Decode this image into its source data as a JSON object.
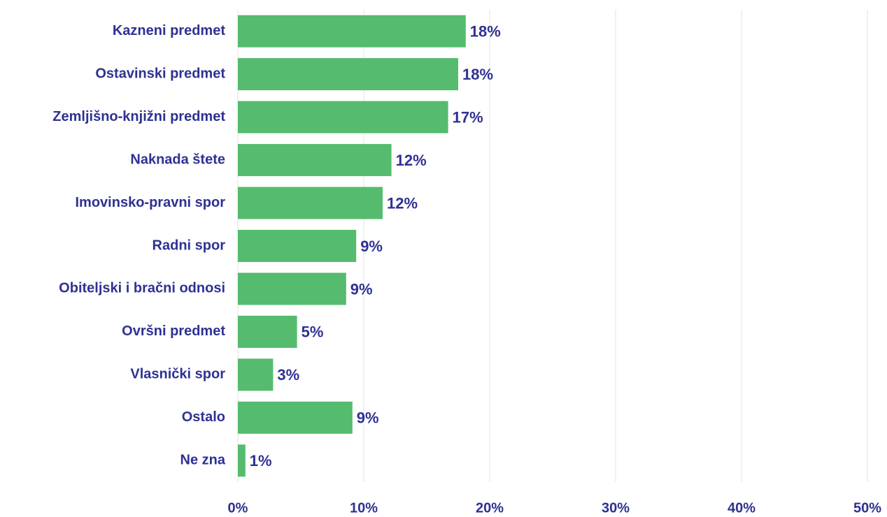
{
  "chart_data": {
    "type": "barh",
    "categories": [
      "Kazneni predmet",
      "Ostavinski predmet",
      "Zemljišno-knjižni predmet",
      "Naknada štete",
      "Imovinsko-pravni spor",
      "Radni spor",
      "Obiteljski i bračni odnosi",
      "Ovršni predmet",
      "Vlasnički spor",
      "Ostalo",
      "Ne zna"
    ],
    "values": [
      18.1,
      17.5,
      16.7,
      12.2,
      11.5,
      9.4,
      8.6,
      4.7,
      2.8,
      9.1,
      0.6
    ],
    "value_labels": [
      "18%",
      "18%",
      "17%",
      "12%",
      "12%",
      "9%",
      "9%",
      "5%",
      "3%",
      "9%",
      "1%"
    ],
    "color": "#55bb6e",
    "xlim": [
      0,
      50
    ],
    "xticks": [
      {
        "value": 0,
        "label": "0%"
      },
      {
        "value": 10,
        "label": "10%"
      },
      {
        "value": 20,
        "label": "20%"
      },
      {
        "value": 30,
        "label": "30%"
      },
      {
        "value": 40,
        "label": "40%"
      },
      {
        "value": 50,
        "label": "50%"
      }
    ],
    "grid": true
  }
}
